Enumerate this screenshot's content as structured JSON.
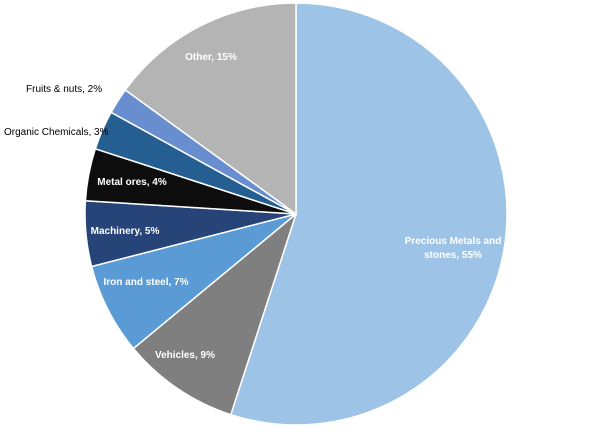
{
  "chart_data": {
    "type": "pie",
    "title": "",
    "slices": [
      {
        "label": "Precious Metals and stones, 55%",
        "lines": [
          "Precious Metals and",
          "stones, 55%"
        ],
        "value": 55,
        "color": "#9dc3e6",
        "text_color": "#ffffff",
        "label_placement": "inside"
      },
      {
        "label": "Vehicles, 9%",
        "lines": [
          "Vehicles, 9%"
        ],
        "value": 9,
        "color": "#7f7f7f",
        "text_color": "#ffffff",
        "label_placement": "inside"
      },
      {
        "label": "Iron and steel, 7%",
        "lines": [
          "Iron and steel, 7%"
        ],
        "value": 7,
        "color": "#5b9bd5",
        "text_color": "#ffffff",
        "label_placement": "inside"
      },
      {
        "label": "Machinery, 5%",
        "lines": [
          "Machinery, 5%"
        ],
        "value": 5,
        "color": "#264478",
        "text_color": "#ffffff",
        "label_placement": "inside"
      },
      {
        "label": "Metal ores, 4%",
        "lines": [
          "Metal ores, 4%"
        ],
        "value": 4,
        "color": "#0d0d0d",
        "text_color": "#ffffff",
        "label_placement": "inside"
      },
      {
        "label": "Organic Chemicals, 3%",
        "lines": [
          "Organic Chemicals, 3%"
        ],
        "value": 3,
        "color": "#255e91",
        "text_color": "#000000",
        "label_placement": "outside"
      },
      {
        "label": "Fruits & nuts, 2%",
        "lines": [
          "Fruits & nuts, 2%"
        ],
        "value": 2,
        "color": "#698ed0",
        "text_color": "#000000",
        "label_placement": "outside"
      },
      {
        "label": "Other, 15%",
        "lines": [
          "Other, 15%"
        ],
        "value": 15,
        "color": "#b4b4b4",
        "text_color": "#ffffff",
        "label_placement": "inside"
      }
    ],
    "start_angle": "top",
    "direction": "clockwise",
    "legend": "none"
  }
}
